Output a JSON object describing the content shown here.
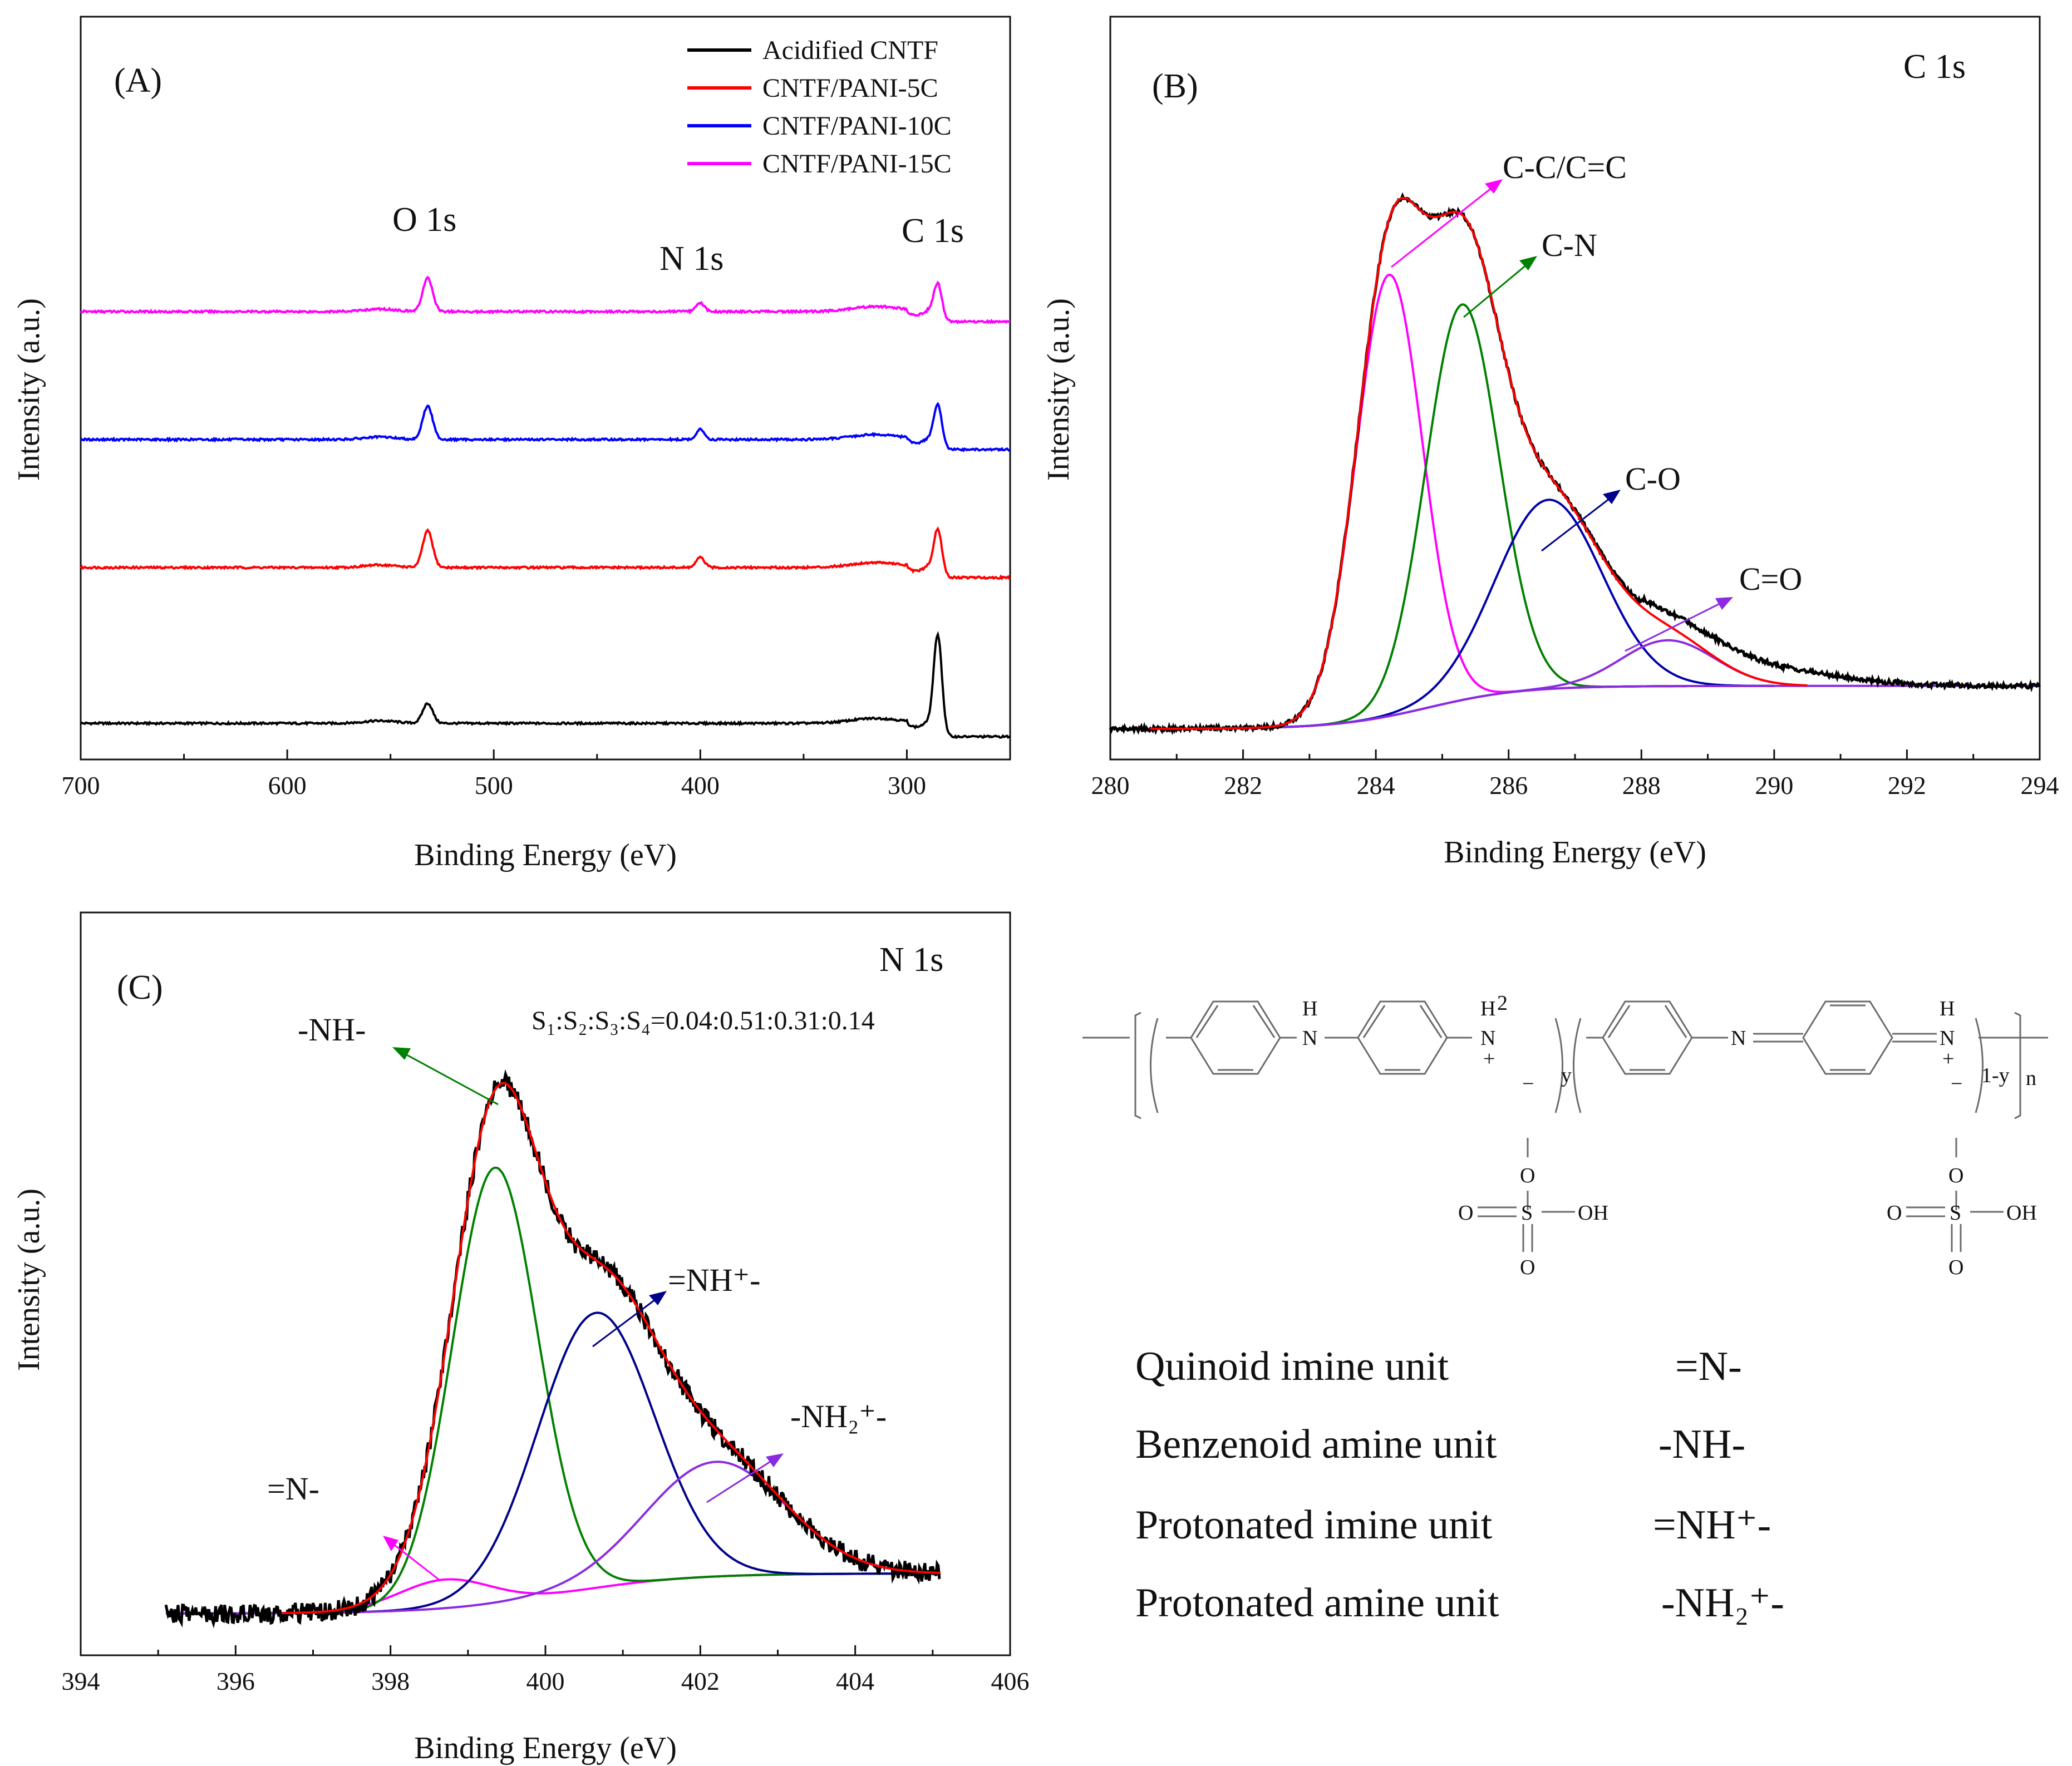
{
  "chart_data": [
    {
      "id": "A",
      "type": "line",
      "panel_label": "(A)",
      "xlabel": "Binding Energy (eV)",
      "ylabel": "Intensity (a.u.)",
      "xlim": [
        700,
        250
      ],
      "x_ticks": [
        "700",
        "600",
        "500",
        "400",
        "300"
      ],
      "series": [
        {
          "name": "Acidified CNTF",
          "color": "#000000",
          "offset": 0,
          "peaks": [
            {
              "x": 532,
              "h": 0.12
            },
            {
              "x": 285,
              "h": 0.6
            }
          ],
          "n1s": false
        },
        {
          "name": "CNTF/PANI-5C",
          "color": "#ff0000",
          "offset": 1,
          "peaks": [
            {
              "x": 532,
              "h": 0.22
            },
            {
              "x": 400,
              "h": 0.06
            },
            {
              "x": 285,
              "h": 0.28
            }
          ],
          "n1s": true
        },
        {
          "name": "CNTF/PANI-10C",
          "color": "#0000ff",
          "offset": 2,
          "peaks": [
            {
              "x": 532,
              "h": 0.2
            },
            {
              "x": 400,
              "h": 0.06
            },
            {
              "x": 285,
              "h": 0.26
            }
          ],
          "n1s": true
        },
        {
          "name": "CNTF/PANI-15C",
          "color": "#ff00ff",
          "offset": 3,
          "peaks": [
            {
              "x": 532,
              "h": 0.2
            },
            {
              "x": 400,
              "h": 0.05
            },
            {
              "x": 285,
              "h": 0.22
            }
          ],
          "n1s": true
        }
      ],
      "peak_labels": [
        "O 1s",
        "N 1s",
        "C 1s"
      ]
    },
    {
      "id": "B",
      "type": "line",
      "panel_label": "(B)",
      "title": "C 1s",
      "xlabel": "Binding Energy (eV)",
      "ylabel": "Intensity (a.u.)",
      "xlim": [
        280,
        294
      ],
      "x_ticks": [
        "280",
        "282",
        "284",
        "286",
        "288",
        "290",
        "292",
        "294"
      ],
      "components": [
        {
          "name": "C-C/C=C",
          "color": "#ff00ff",
          "center": 284.2,
          "height": 0.77,
          "sigma": 0.5
        },
        {
          "name": "C-N",
          "color": "#008000",
          "center": 285.3,
          "height": 0.69,
          "sigma": 0.55
        },
        {
          "name": "C-O",
          "color": "#0000aa",
          "center": 286.6,
          "height": 0.33,
          "sigma": 0.8
        },
        {
          "name": "C=O",
          "color": "#8a2be2",
          "center": 288.4,
          "height": 0.08,
          "sigma": 0.7
        }
      ]
    },
    {
      "id": "C",
      "type": "line",
      "panel_label": "(C)",
      "title": "N 1s",
      "xlabel": "Binding Energy (eV)",
      "ylabel": "Intensity (a.u.)",
      "xlim": [
        394,
        406
      ],
      "x_ticks": [
        "394",
        "396",
        "398",
        "400",
        "402",
        "404",
        "406"
      ],
      "ratio_text": "S₁:S₂:S₃:S₄=0.04:0.51:0.31:0.14",
      "components": [
        {
          "name": "=N-",
          "color": "#ff00ff",
          "center": 398.7,
          "height": 0.05,
          "sigma": 0.6
        },
        {
          "name": "-NH-",
          "color": "#008000",
          "center": 399.35,
          "height": 0.76,
          "sigma": 0.55
        },
        {
          "name": "=NH⁺-",
          "color": "#00008b",
          "center": 400.65,
          "height": 0.48,
          "sigma": 0.75
        },
        {
          "name": "-NH₂⁺-",
          "color": "#8a2be2",
          "center": 402.2,
          "height": 0.2,
          "sigma": 0.9
        }
      ]
    }
  ],
  "structure": {
    "labels": {
      "h1": "H",
      "n1": "N",
      "h2": "H",
      "sub2": "2",
      "n2": "N",
      "plus": "+",
      "minus": "−",
      "y": "y",
      "n3": "N",
      "n4": "N",
      "oneminusy": "1-y",
      "n": "n",
      "o": "O",
      "s": "S",
      "oh": "OH"
    }
  },
  "units_table": [
    {
      "name": "Quinoid imine unit",
      "symbol": "=N-"
    },
    {
      "name": "Benzenoid amine unit",
      "symbol": "-NH-"
    },
    {
      "name": "Protonated imine unit",
      "symbol": "=NH⁺-"
    },
    {
      "name": "Protonated amine unit",
      "symbol": "-NH₂⁺-"
    }
  ]
}
